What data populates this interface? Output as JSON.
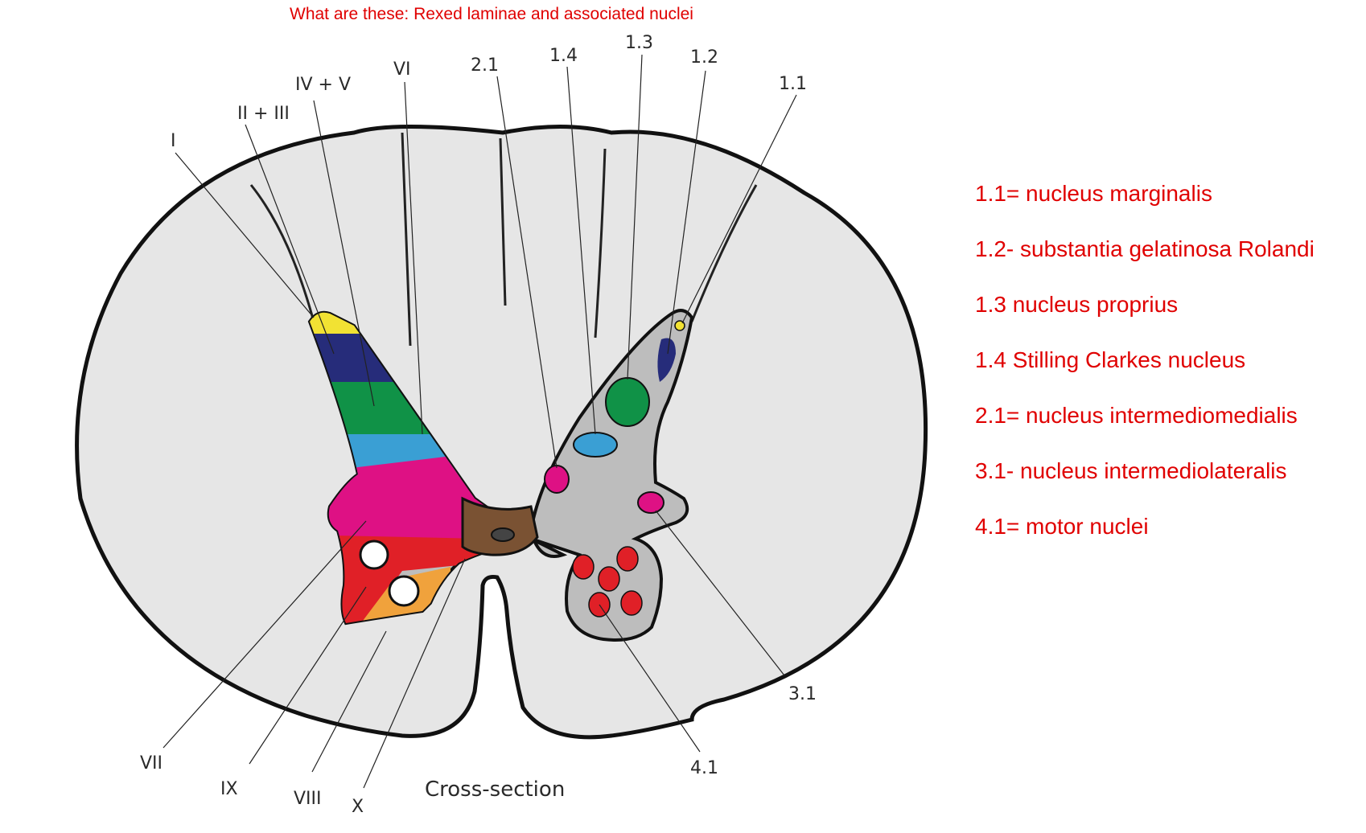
{
  "title": "What are these: Rexed laminae and associated nuclei",
  "caption": "Cross-section",
  "colors": {
    "title_red": "#e00000",
    "white_matter": "#e6e6e6",
    "grey_matter_right": "#bdbdbd",
    "lamina_I": "#f2e233",
    "lamina_II_III": "#262c7a",
    "lamina_IV_V": "#109247",
    "lamina_VI": "#3a9fd4",
    "lamina_VII": "#de1184",
    "lamina_VIII": "#f0a23c",
    "lamina_IX": "#e02027",
    "lamina_X": "#7a5233"
  },
  "lamina_labels": {
    "I": "I",
    "II_III": "II + III",
    "IV_V": "IV + V",
    "VI": "VI",
    "VII": "VII",
    "VIII": "VIII",
    "IX": "IX",
    "X": "X"
  },
  "nucleus_labels": {
    "n1_1": "1.1",
    "n1_2": "1.2",
    "n1_3": "1.3",
    "n1_4": "1.4",
    "n2_1": "2.1",
    "n3_1": "3.1",
    "n4_1": "4.1"
  },
  "legend": [
    "1.1= nucleus marginalis",
    "1.2- substantia gelatinosa Rolandi",
    "1.3 nucleus proprius",
    "1.4 Stilling Clarkes nucleus",
    "2.1= nucleus intermediomedialis",
    "3.1- nucleus intermediolateralis",
    "4.1= motor nuclei"
  ]
}
